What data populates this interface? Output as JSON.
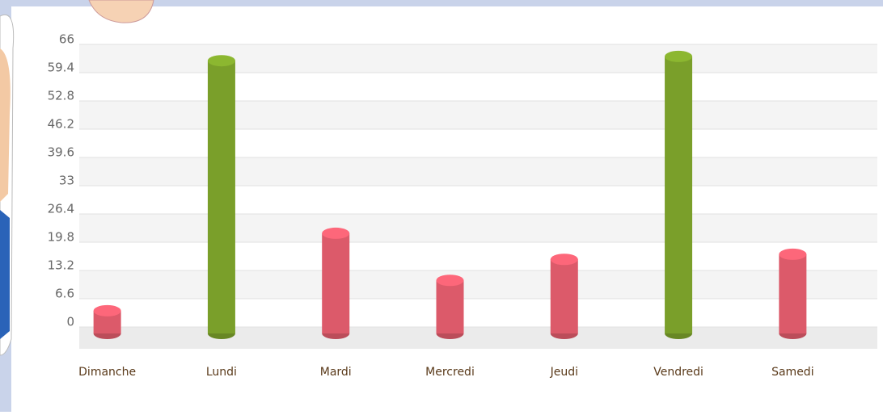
{
  "chart_data": {
    "type": "bar",
    "categories": [
      "Dimanche",
      "Lundi",
      "Mardi",
      "Mercredi",
      "Jeudi",
      "Vendredi",
      "Samedi"
    ],
    "values": [
      5.3,
      63.7,
      23.4,
      12.4,
      17.3,
      64.7,
      18.5
    ],
    "colors": [
      "#dc5a6a",
      "#7a9f2a",
      "#dc5a6a",
      "#dc5a6a",
      "#dc5a6a",
      "#7a9f2a",
      "#dc5a6a"
    ],
    "ylim": [
      0,
      66
    ],
    "yticks": [
      0,
      6.6,
      13.2,
      19.8,
      26.4,
      33,
      39.6,
      46.2,
      52.8,
      59.4,
      66
    ],
    "grid": true
  }
}
